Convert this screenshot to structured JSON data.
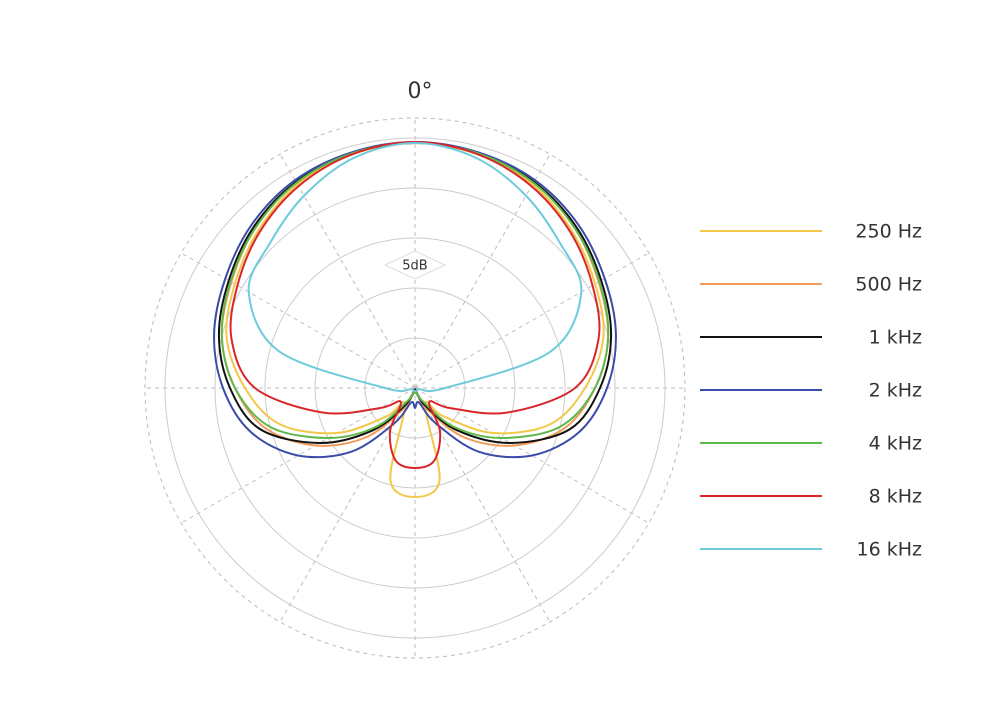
{
  "chart_data": {
    "type": "polar",
    "title": "0°",
    "annotation": "5dB",
    "angles": [
      0,
      15,
      30,
      45,
      60,
      75,
      90,
      105,
      120,
      135,
      150,
      165,
      180,
      195,
      210,
      225,
      240,
      255,
      270,
      285,
      300,
      315,
      330,
      345
    ],
    "rlim": [
      -25,
      2
    ],
    "rticks": [
      -20,
      -15,
      -10,
      -5,
      0
    ],
    "thetagrid": [
      0,
      30,
      60,
      90,
      120,
      150,
      180,
      210,
      240,
      270,
      300,
      330
    ],
    "series": [
      {
        "name": "250 Hz",
        "color": "#f2c84b",
        "values": [
          -0.5,
          -0.8,
          -1.5,
          -2.8,
          -4.2,
          -5.5,
          -8,
          -11,
          -16,
          -21,
          -23,
          -15.5,
          -14.1,
          -15.5,
          -23,
          -21,
          -16,
          -11,
          -8,
          -5.5,
          -4.2,
          -2.8,
          -1.5,
          -0.8
        ]
      },
      {
        "name": "500 Hz",
        "color": "#f39a5a",
        "values": [
          -0.5,
          -0.7,
          -1.3,
          -2.4,
          -3.8,
          -5,
          -7,
          -9.5,
          -13.5,
          -18,
          -22.5,
          -24.5,
          -24.8,
          -24.5,
          -22.5,
          -18,
          -13.5,
          -9.5,
          -7,
          -5,
          -3.8,
          -2.4,
          -1.3,
          -0.7
        ]
      },
      {
        "name": "1 kHz",
        "color": "#111111",
        "values": [
          -0.5,
          -0.7,
          -1.2,
          -2.2,
          -3.5,
          -4.7,
          -6.5,
          -9,
          -14,
          -19,
          -23,
          -24.7,
          -24.8,
          -24.7,
          -23,
          -19,
          -14,
          -9,
          -6.5,
          -4.7,
          -3.5,
          -2.2,
          -1.2,
          -0.7
        ]
      },
      {
        "name": "2 kHz",
        "color": "#3a4ba8",
        "values": [
          -0.4,
          -0.6,
          -1,
          -1.9,
          -3.1,
          -4.2,
          -5.8,
          -8,
          -11.5,
          -16,
          -21,
          -23.5,
          -23,
          -23.5,
          -21,
          -16,
          -11.5,
          -8,
          -5.8,
          -4.2,
          -3.1,
          -1.9,
          -1,
          -0.6
        ]
      },
      {
        "name": "4 kHz",
        "color": "#5fb84a",
        "values": [
          -0.5,
          -0.7,
          -1.3,
          -2.4,
          -3.7,
          -5,
          -7,
          -10,
          -15,
          -19.5,
          -23.5,
          -24.5,
          -24.5,
          -24.5,
          -23.5,
          -19.5,
          -15,
          -10,
          -7,
          -5,
          -3.7,
          -2.4,
          -1.3,
          -0.7
        ]
      },
      {
        "name": "8 kHz",
        "color": "#d9262a",
        "values": [
          -0.4,
          -0.8,
          -1.7,
          -3,
          -4.5,
          -6,
          -9,
          -15.5,
          -21,
          -23,
          -20,
          -17.5,
          -17,
          -17.5,
          -20,
          -23,
          -21,
          -15.5,
          -9,
          -6,
          -4.5,
          -3,
          -1.7,
          -0.8
        ]
      },
      {
        "name": "16 kHz",
        "color": "#6ecbdc",
        "values": [
          -0.5,
          -1.2,
          -2.8,
          -4.5,
          -5.8,
          -11,
          -22,
          -24.5,
          -24.7,
          -24.7,
          -24.7,
          -24.7,
          -24.7,
          -24.7,
          -24.7,
          -24.7,
          -24.7,
          -24.5,
          -22,
          -11,
          -5.8,
          -4.5,
          -2.8,
          -1.2
        ]
      }
    ]
  }
}
